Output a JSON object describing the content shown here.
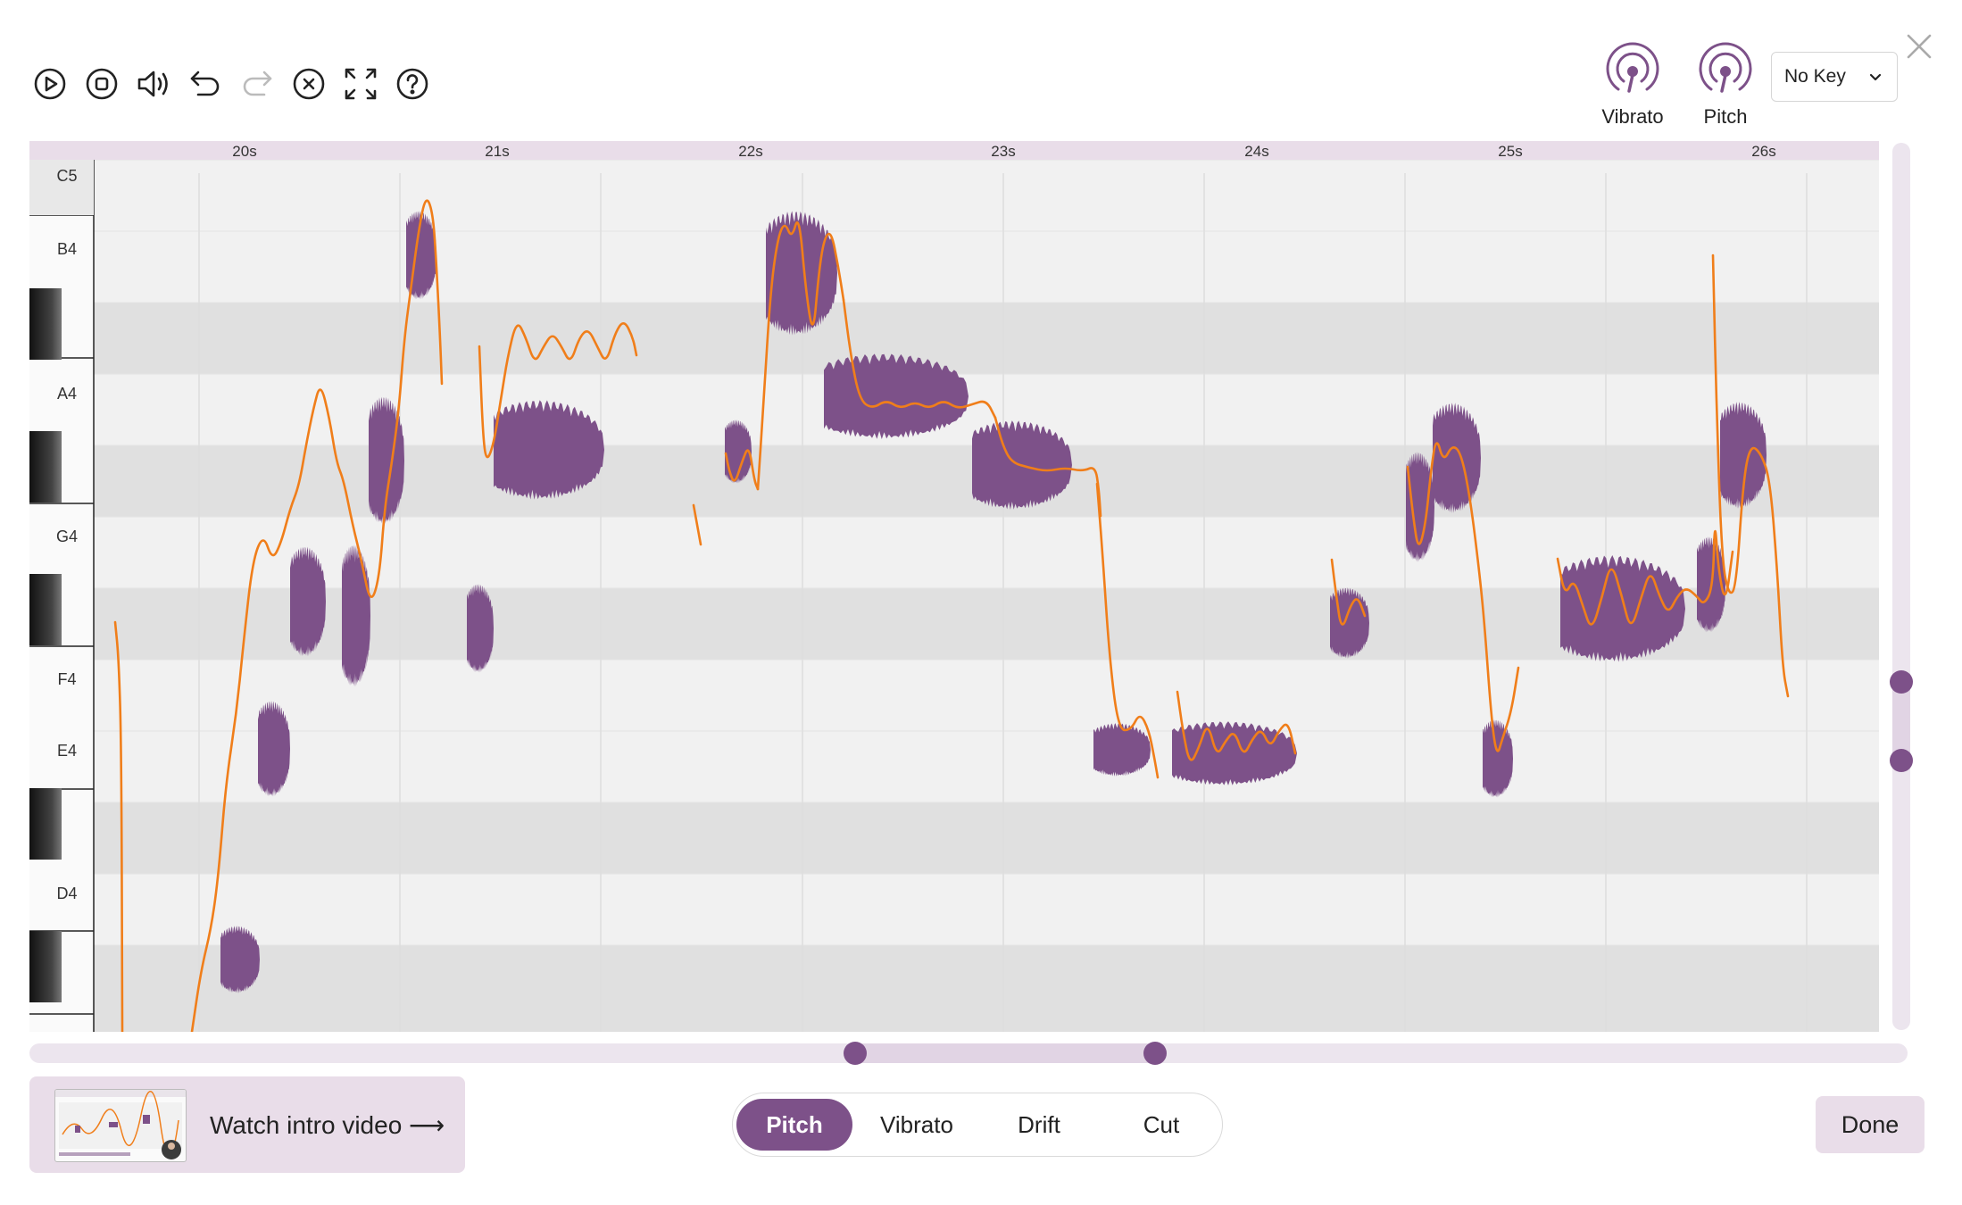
{
  "toolbar": {
    "icons": [
      "play-icon",
      "stop-icon",
      "volume-icon",
      "undo-icon",
      "redo-icon",
      "clear-icon",
      "fullscreen-icon",
      "help-icon"
    ],
    "icon_color": "#222222",
    "disabled_color": "#bbbbbb"
  },
  "header": {
    "modes": [
      {
        "label": "Vibrato",
        "icon": "vibrato-icon"
      },
      {
        "label": "Pitch",
        "icon": "pitch-icon"
      }
    ],
    "key_select": {
      "value": "No Key",
      "icon": "chevron-down-icon"
    },
    "close_icon": "close-icon"
  },
  "editor": {
    "time_labels": [
      "20s",
      "21s",
      "22s",
      "23s",
      "24s",
      "25s",
      "26s"
    ],
    "note_labels": [
      "C5",
      "B4",
      "A4",
      "G4",
      "F4",
      "E4",
      "D4"
    ],
    "colors": {
      "waveform": "#7d5189",
      "pitch_curve": "#f07e1a",
      "ruler": "#e9dde9",
      "black_key_row": "#e0e0e0",
      "white_key_row": "#f1f1f1"
    }
  },
  "intro": {
    "label": "Watch intro video ⟶"
  },
  "tabs": [
    {
      "label": "Pitch",
      "active": true
    },
    {
      "label": "Vibrato",
      "active": false
    },
    {
      "label": "Drift",
      "active": false
    },
    {
      "label": "Cut",
      "active": false
    }
  ],
  "done_label": "Done"
}
